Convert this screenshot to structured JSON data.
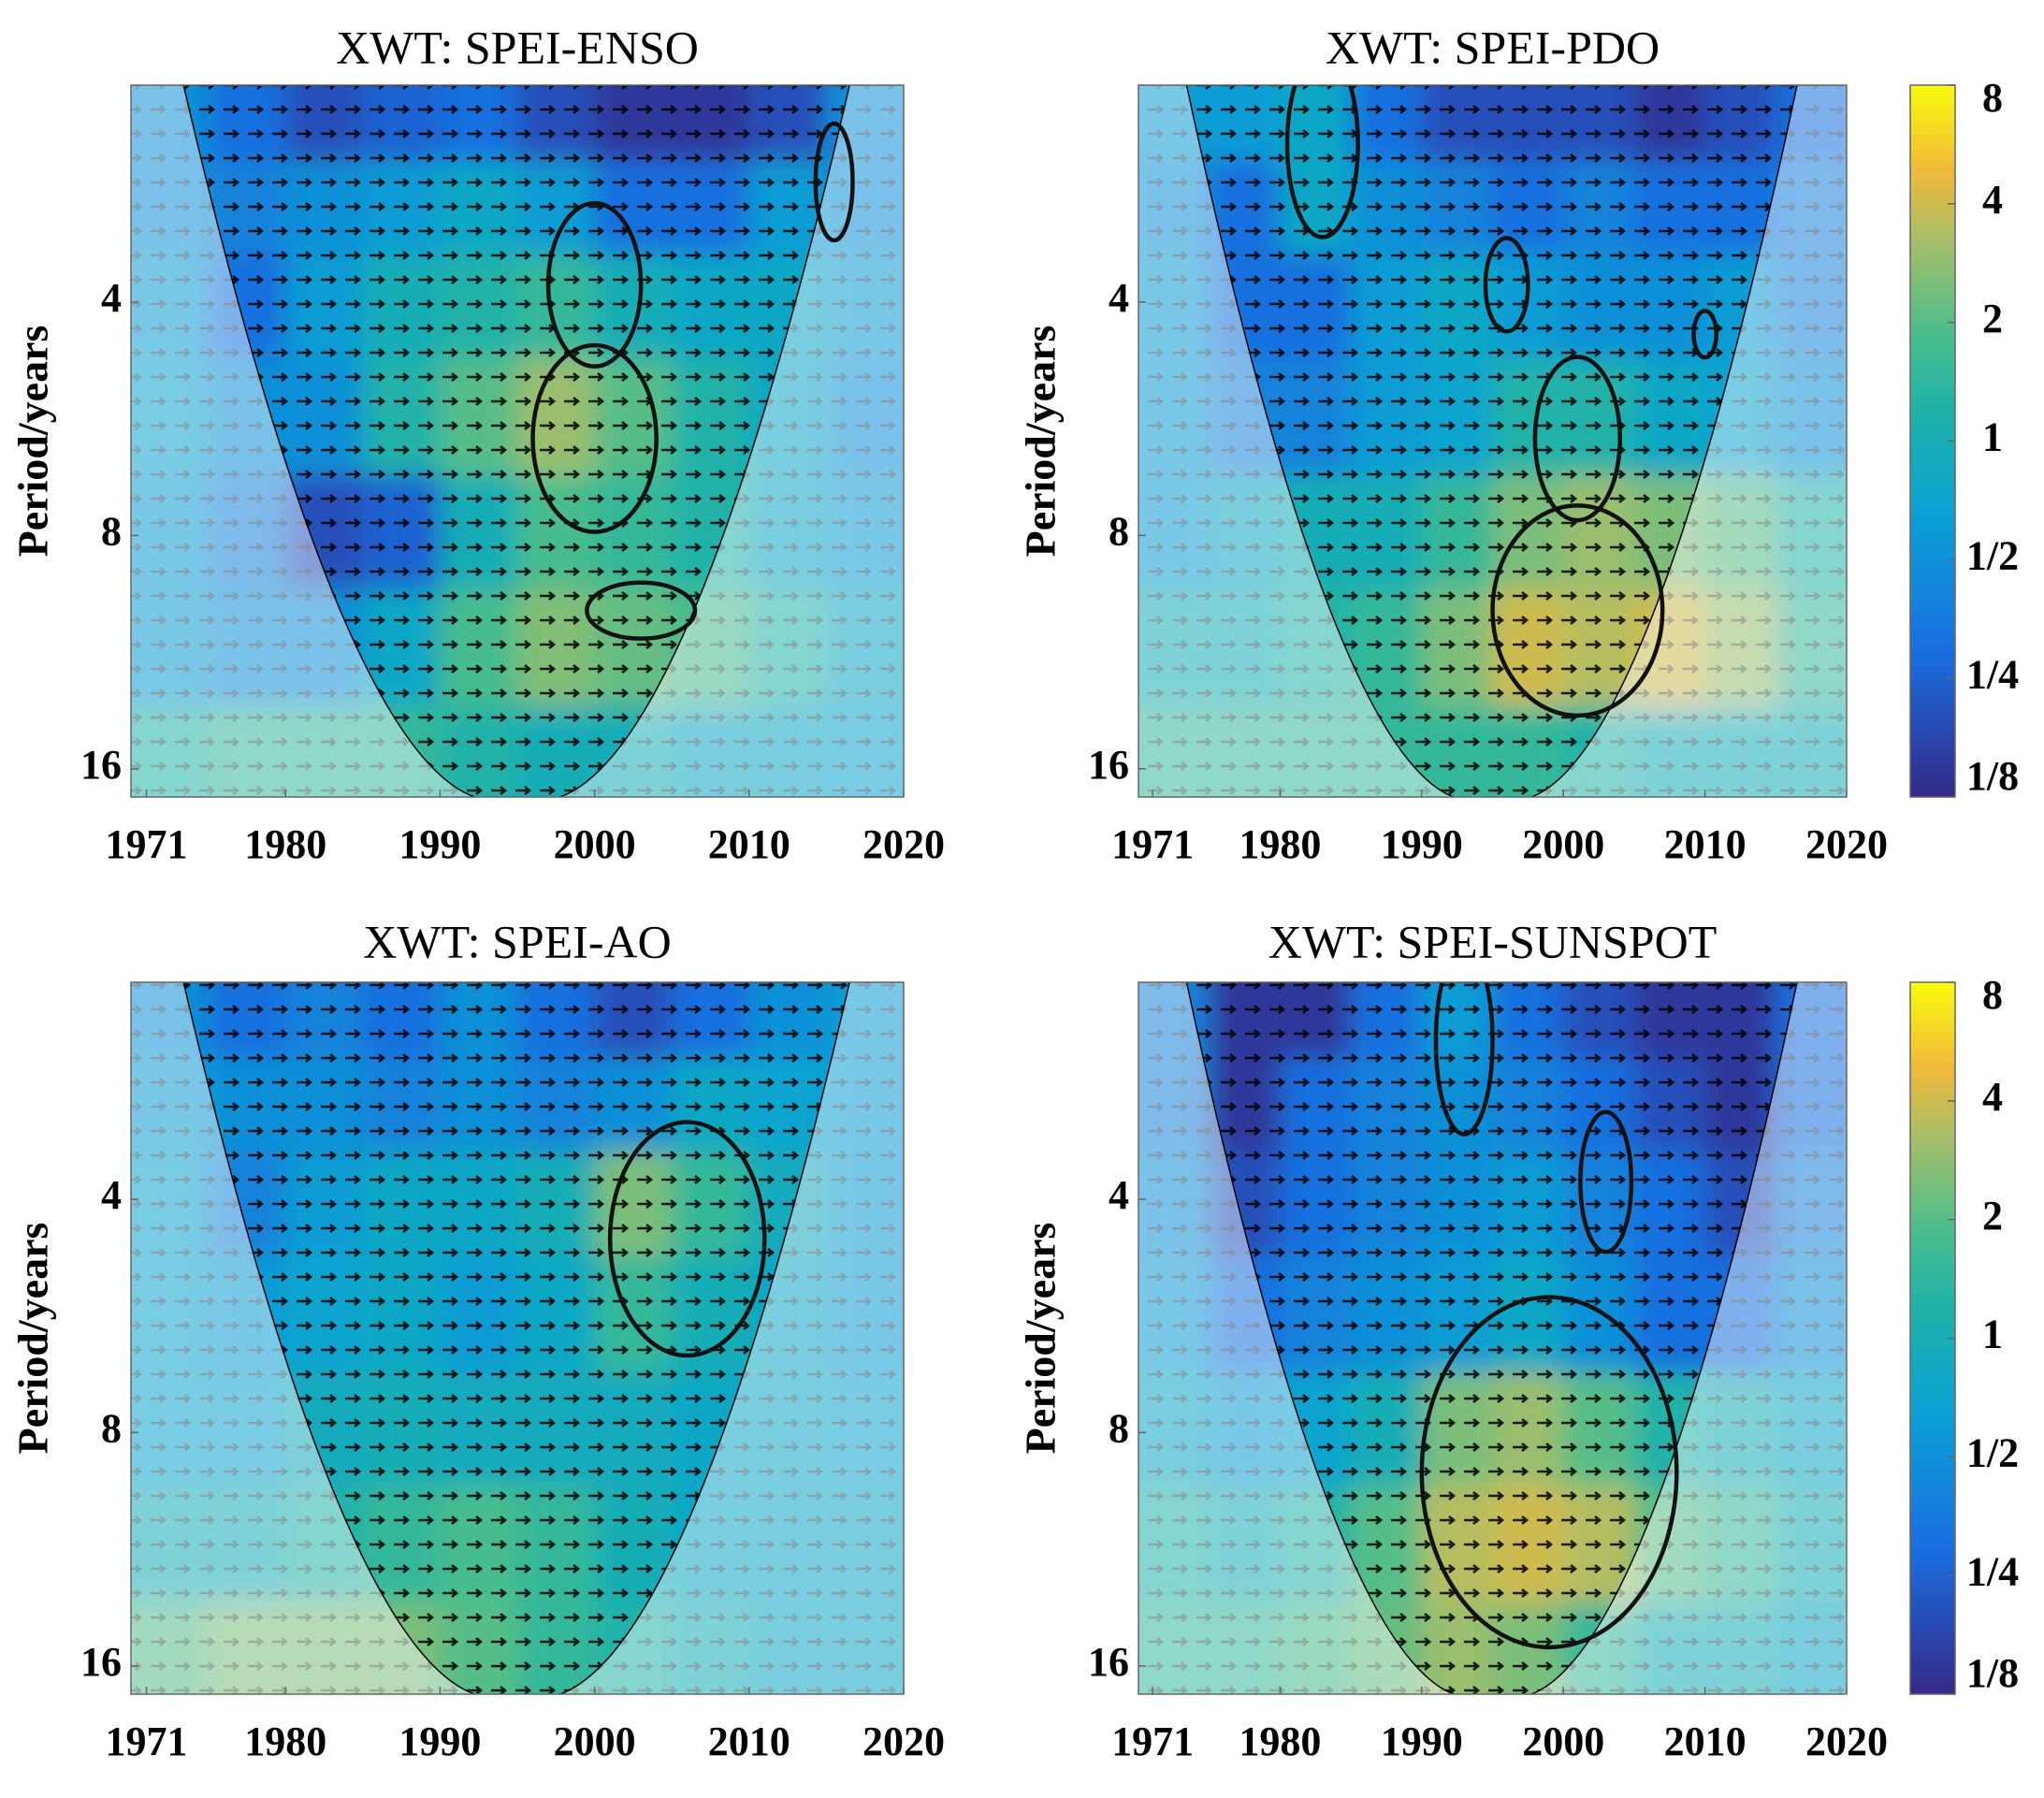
{
  "chart_data": [
    {
      "type": "heatmap",
      "title": "XWT: SPEI-ENSO",
      "ylabel": "Period/years",
      "yscale": "log",
      "y_reversed": true,
      "xlim": [
        1970,
        2020
      ],
      "xticks": [
        1971,
        1980,
        1990,
        2000,
        2010,
        2020
      ],
      "ylim": [
        2.1,
        17.4
      ],
      "yticks": [
        4,
        8,
        16
      ],
      "x": [
        1972.5,
        1977.5,
        1982.5,
        1987.5,
        1992.5,
        1997.5,
        2002.5,
        2007.5,
        2012.5,
        2017.5
      ],
      "y": [
        2.3,
        3,
        4,
        5.6,
        8,
        11,
        16
      ],
      "z": [
        [
          0.5,
          0.3,
          0.2,
          0.25,
          0.3,
          0.2,
          0.15,
          0.15,
          0.2,
          0.5
        ],
        [
          0.5,
          0.4,
          0.5,
          0.6,
          0.8,
          0.6,
          0.3,
          0.3,
          0.6,
          0.5
        ],
        [
          0.6,
          0.3,
          0.6,
          1,
          1.2,
          1.5,
          1,
          0.8,
          0.8,
          0.6
        ],
        [
          0.7,
          0.5,
          0.5,
          1.2,
          2,
          3,
          2,
          1.2,
          0.8,
          0.5
        ],
        [
          0.6,
          0.4,
          0.2,
          0.25,
          1,
          1.8,
          1.5,
          1.2,
          0.8,
          0.6
        ],
        [
          0.6,
          0.5,
          0.5,
          0.8,
          1.8,
          2.6,
          2.2,
          1.8,
          1.2,
          0.8
        ],
        [
          1.2,
          1.5,
          1.5,
          1.5,
          1.2,
          1,
          1,
          0.8,
          0.8,
          0.7
        ]
      ],
      "contours": [
        {
          "x": 2000,
          "y": 3.8,
          "rx": 3,
          "ry": 0.35
        },
        {
          "x": 2000,
          "y": 6,
          "rx": 4,
          "ry": 0.4
        },
        {
          "x": 2003,
          "y": 10,
          "rx": 3.5,
          "ry": 0.12
        },
        {
          "x": 2015.5,
          "y": 2.8,
          "rx": 1.2,
          "ry": 0.25
        }
      ]
    },
    {
      "type": "heatmap",
      "title": "XWT: SPEI-PDO",
      "ylabel": "Period/years",
      "yscale": "log",
      "y_reversed": true,
      "xlim": [
        1970,
        2020
      ],
      "xticks": [
        1971,
        1980,
        1990,
        2000,
        2010,
        2020
      ],
      "ylim": [
        2.1,
        17.4
      ],
      "yticks": [
        4,
        8,
        16
      ],
      "x": [
        1972.5,
        1977.5,
        1982.5,
        1987.5,
        1992.5,
        1997.5,
        2002.5,
        2007.5,
        2012.5,
        2017.5
      ],
      "y": [
        2.3,
        3,
        4,
        5.6,
        8,
        11,
        16
      ],
      "z": [
        [
          0.6,
          0.6,
          0.8,
          0.3,
          0.2,
          0.2,
          0.2,
          0.15,
          0.2,
          0.3
        ],
        [
          0.5,
          0.3,
          0.8,
          0.5,
          0.4,
          0.3,
          0.4,
          0.3,
          0.3,
          0.4
        ],
        [
          0.6,
          0.3,
          0.3,
          0.6,
          0.8,
          0.6,
          0.5,
          0.5,
          0.6,
          0.4
        ],
        [
          0.6,
          0.4,
          0.4,
          0.6,
          0.7,
          1.2,
          1.2,
          0.8,
          0.7,
          0.5
        ],
        [
          0.6,
          0.8,
          1,
          1,
          1.5,
          2.5,
          3,
          2.5,
          2,
          1.2
        ],
        [
          1,
          1,
          1.2,
          1.5,
          2.5,
          4,
          3.5,
          4,
          3,
          1.5
        ],
        [
          1.5,
          1.5,
          1.5,
          1.5,
          1.5,
          1.5,
          1.2,
          1,
          1,
          1
        ]
      ],
      "contours": [
        {
          "x": 1983,
          "y": 2.5,
          "rx": 2.5,
          "ry": 0.4
        },
        {
          "x": 1996,
          "y": 3.8,
          "rx": 1.5,
          "ry": 0.2
        },
        {
          "x": 2001,
          "y": 6,
          "rx": 3,
          "ry": 0.35
        },
        {
          "x": 2001,
          "y": 10,
          "rx": 6,
          "ry": 0.45
        },
        {
          "x": 2010,
          "y": 4.4,
          "rx": 0.8,
          "ry": 0.1
        }
      ],
      "colorbar": {
        "scale": "log",
        "clim": [
          0.125,
          8
        ],
        "ticks": [
          8,
          4,
          2,
          1,
          {
            "value": 0.5,
            "label": "1/2"
          },
          {
            "value": 0.25,
            "label": "1/4"
          },
          {
            "value": 0.125,
            "label": "1/8"
          }
        ]
      }
    },
    {
      "type": "heatmap",
      "title": "XWT: SPEI-AO",
      "ylabel": "Period/years",
      "yscale": "log",
      "y_reversed": true,
      "xlim": [
        1970,
        2020
      ],
      "xticks": [
        1971,
        1980,
        1990,
        2000,
        2010,
        2020
      ],
      "ylim": [
        2.1,
        17.4
      ],
      "yticks": [
        4,
        8,
        16
      ],
      "x": [
        1972.5,
        1977.5,
        1982.5,
        1987.5,
        1992.5,
        1997.5,
        2002.5,
        2007.5,
        2012.5,
        2017.5
      ],
      "y": [
        2.3,
        3,
        4,
        5.6,
        8,
        11,
        16
      ],
      "z": [
        [
          0.5,
          0.3,
          0.4,
          0.3,
          0.5,
          0.3,
          0.2,
          0.3,
          0.5,
          0.6
        ],
        [
          0.6,
          0.5,
          0.5,
          0.4,
          0.5,
          0.4,
          0.5,
          0.8,
          0.7,
          0.6
        ],
        [
          0.7,
          0.4,
          0.6,
          0.8,
          0.8,
          1,
          2.5,
          1.5,
          0.9,
          0.6
        ],
        [
          0.7,
          0.6,
          0.7,
          0.8,
          0.6,
          0.8,
          1.5,
          1,
          0.8,
          0.6
        ],
        [
          0.7,
          0.7,
          0.9,
          1,
          0.9,
          0.9,
          0.9,
          0.8,
          0.8,
          0.7
        ],
        [
          1,
          1,
          1.2,
          1.5,
          1.8,
          1.5,
          1,
          0.8,
          0.8,
          0.8
        ],
        [
          2,
          2.5,
          2.5,
          2.5,
          2,
          1.5,
          1.2,
          1,
          0.8,
          0.8
        ]
      ],
      "contours": [
        {
          "x": 2006,
          "y": 4.5,
          "rx": 5,
          "ry": 0.5
        }
      ]
    },
    {
      "type": "heatmap",
      "title": "XWT: SPEI-SUNSPOT",
      "ylabel": "Period/years",
      "yscale": "log",
      "y_reversed": true,
      "xlim": [
        1970,
        2020
      ],
      "xticks": [
        1971,
        1980,
        1990,
        2000,
        2010,
        2020
      ],
      "ylim": [
        2.1,
        17.4
      ],
      "yticks": [
        4,
        8,
        16
      ],
      "x": [
        1972.5,
        1977.5,
        1982.5,
        1987.5,
        1992.5,
        1997.5,
        2002.5,
        2007.5,
        2012.5,
        2017.5
      ],
      "y": [
        2.3,
        3,
        4,
        5.6,
        8,
        11,
        16
      ],
      "z": [
        [
          0.4,
          0.15,
          0.15,
          0.3,
          0.6,
          0.3,
          0.2,
          0.15,
          0.15,
          0.3
        ],
        [
          0.4,
          0.15,
          0.3,
          0.4,
          0.5,
          0.4,
          0.3,
          0.2,
          0.15,
          0.3
        ],
        [
          0.5,
          0.2,
          0.3,
          0.4,
          0.5,
          0.6,
          0.4,
          0.3,
          0.2,
          0.4
        ],
        [
          0.6,
          0.3,
          0.4,
          0.5,
          0.6,
          0.8,
          0.5,
          0.3,
          0.3,
          0.5
        ],
        [
          0.8,
          0.6,
          0.7,
          1,
          2.5,
          3,
          2,
          1.2,
          1,
          0.8
        ],
        [
          1.2,
          1,
          1.2,
          2,
          3.5,
          4,
          3.5,
          2,
          1.5,
          1
        ],
        [
          1.5,
          1.5,
          1.8,
          2.2,
          3,
          2.5,
          1.5,
          1,
          1,
          0.8
        ]
      ],
      "contours": [
        {
          "x": 1993,
          "y": 2.5,
          "rx": 2,
          "ry": 0.4
        },
        {
          "x": 2003,
          "y": 3.8,
          "rx": 1.8,
          "ry": 0.3
        },
        {
          "x": 1999,
          "y": 9,
          "rx": 9,
          "ry": 0.75
        }
      ],
      "colorbar": {
        "scale": "log",
        "clim": [
          0.125,
          8
        ],
        "ticks": [
          8,
          4,
          2,
          1,
          {
            "value": 0.5,
            "label": "1/2"
          },
          {
            "value": 0.25,
            "label": "1/4"
          },
          {
            "value": 0.125,
            "label": "1/8"
          }
        ]
      }
    }
  ]
}
